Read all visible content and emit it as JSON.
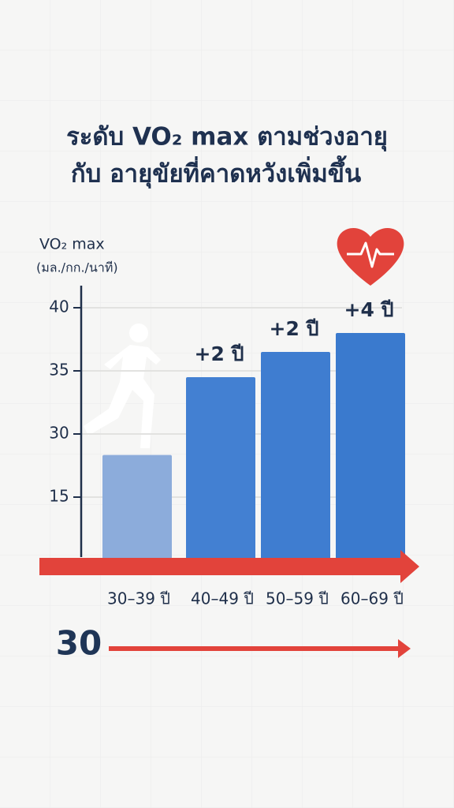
{
  "chart_data": {
    "type": "bar",
    "title": [
      "ระดับ VO₂ max ตามช่วงอายุ",
      "กับ อายุขัยที่คาดหวังเพิ่มขึ้น"
    ],
    "y_label": [
      "VO₂ max",
      "(มล./กก./นาที)"
    ],
    "categories": [
      "30–39 ปี",
      "40–49 ปี",
      "50–59 ปี",
      "60–69 ปี"
    ],
    "values": [
      25,
      34.5,
      36.5,
      38
    ],
    "colors": [
      "#8cacdb",
      "#4380d2",
      "#3f7dd0",
      "#3a7ace"
    ],
    "annotations": [
      null,
      "+2 ปี",
      "+2 ปี",
      "+4 ปี"
    ],
    "ylim": [
      0,
      42
    ],
    "yticks": [
      15,
      30,
      35,
      40
    ],
    "grid": true,
    "arrow_color": "#e2433b",
    "bottom_label": "30"
  }
}
